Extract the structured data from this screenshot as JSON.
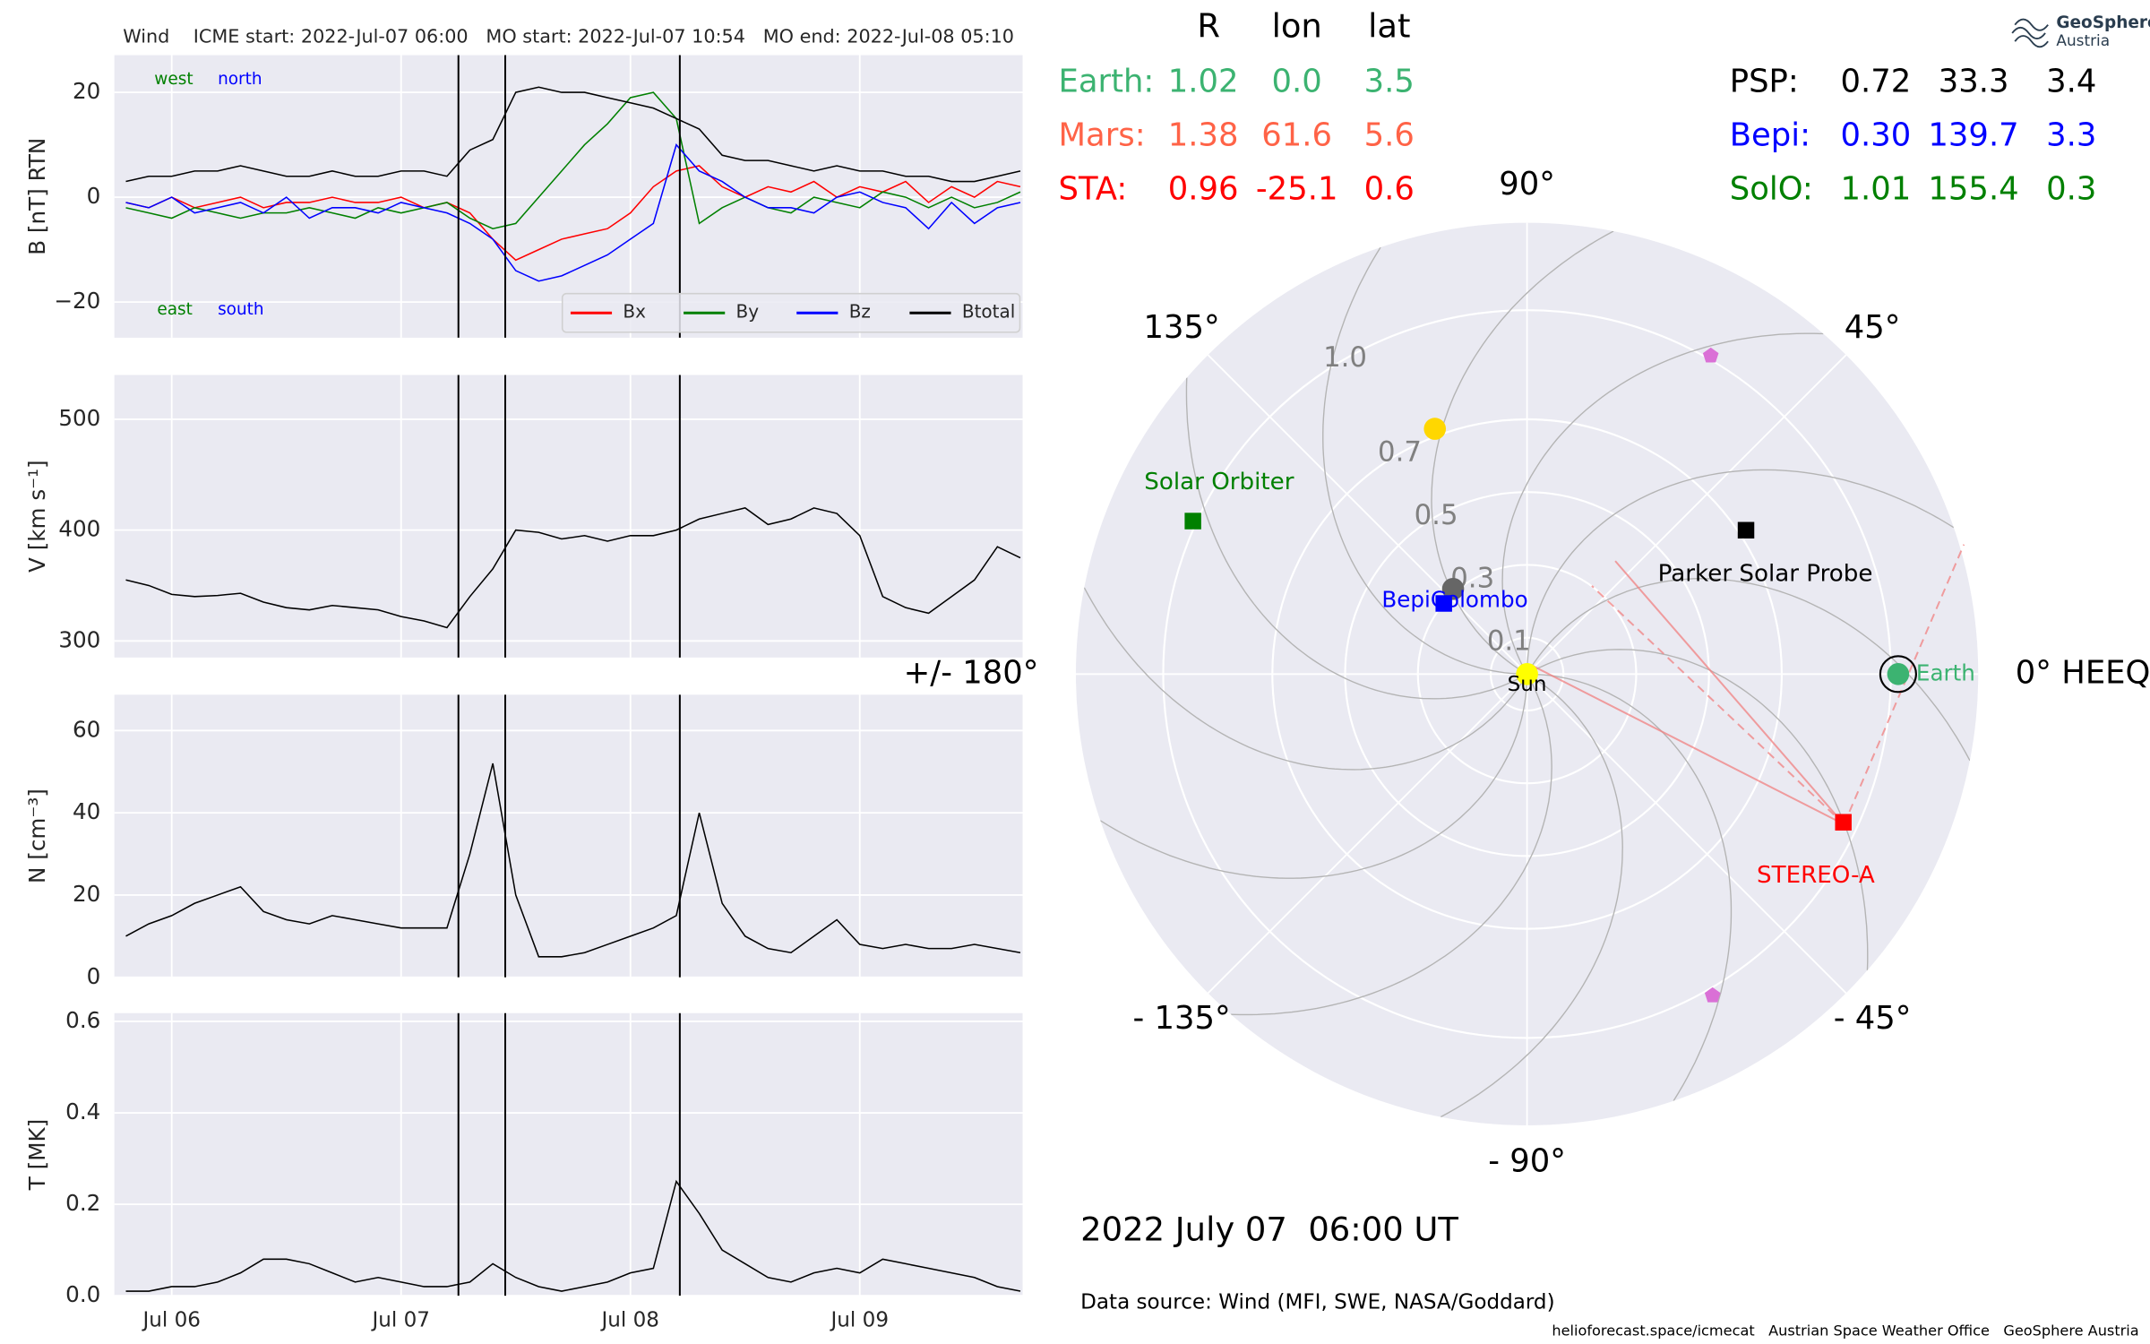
{
  "chart_data": [
    {
      "type": "line",
      "title": "Wind    ICME start: 2022-Jul-07 06:00   MO start: 2022-Jul-07 10:54   MO end: 2022-Jul-08 05:10",
      "ylabel": "B [nT] RTN",
      "x": [
        5.8,
        5.9,
        6,
        6.1,
        6.2,
        6.3,
        6.4,
        6.5,
        6.6,
        6.7,
        6.8,
        6.9,
        7,
        7.1,
        7.2,
        7.3,
        7.4,
        7.5,
        7.6,
        7.7,
        7.8,
        7.9,
        8,
        8.1,
        8.2,
        8.3,
        8.4,
        8.5,
        8.6,
        8.7,
        8.8,
        8.9,
        9,
        9.1,
        9.2,
        9.3,
        9.4,
        9.5,
        9.6,
        9.7
      ],
      "series": [
        {
          "name": "Bx",
          "color": "#ff0000",
          "values": [
            -1,
            -2,
            0,
            -2,
            -1,
            0,
            -2,
            -1,
            -1,
            0,
            -1,
            -1,
            0,
            -2,
            -1,
            -3,
            -8,
            -12,
            -10,
            -8,
            -7,
            -6,
            -3,
            2,
            5,
            6,
            2,
            0,
            2,
            1,
            3,
            0,
            2,
            1,
            3,
            -1,
            2,
            0,
            3,
            2
          ]
        },
        {
          "name": "By",
          "color": "#008000",
          "values": [
            -2,
            -3,
            -4,
            -2,
            -3,
            -4,
            -3,
            -3,
            -2,
            -3,
            -4,
            -2,
            -3,
            -2,
            -1,
            -4,
            -6,
            -5,
            0,
            5,
            10,
            14,
            19,
            20,
            15,
            -5,
            -2,
            0,
            -2,
            -3,
            0,
            -1,
            -2,
            1,
            0,
            -2,
            0,
            -2,
            -1,
            1
          ]
        },
        {
          "name": "Bz",
          "color": "#0000ff",
          "values": [
            -1,
            -2,
            0,
            -3,
            -2,
            -1,
            -3,
            0,
            -4,
            -2,
            -2,
            -3,
            -1,
            -2,
            -3,
            -5,
            -8,
            -14,
            -16,
            -15,
            -13,
            -11,
            -8,
            -5,
            10,
            5,
            3,
            0,
            -2,
            -2,
            -3,
            0,
            1,
            -1,
            -2,
            -6,
            -1,
            -5,
            -2,
            -1
          ]
        },
        {
          "name": "Btotal",
          "color": "#000000",
          "values": [
            3,
            4,
            4,
            5,
            5,
            6,
            5,
            4,
            4,
            5,
            4,
            4,
            5,
            5,
            4,
            9,
            11,
            20,
            21,
            20,
            20,
            19,
            18,
            17,
            15,
            13,
            8,
            7,
            7,
            6,
            5,
            6,
            5,
            5,
            4,
            4,
            3,
            3,
            4,
            5
          ]
        }
      ],
      "xlim": [
        5.75,
        9.71
      ],
      "xticks": [
        6,
        7,
        8,
        9
      ],
      "ylim": [
        -26.8,
        27.1
      ],
      "yticks": [
        {
          "value": -20,
          "label": "−20"
        },
        0,
        20
      ],
      "grid": true,
      "legend": "lower right",
      "vlines": [
        7.25,
        7.4542,
        8.2153
      ],
      "annotations": [
        {
          "text": "west",
          "color": "#008000"
        },
        {
          "text": "north",
          "color": "#0000ff"
        },
        {
          "text": "east",
          "color": "#008000"
        },
        {
          "text": "south",
          "color": "#0000ff"
        }
      ]
    },
    {
      "type": "line",
      "ylabel": "V [km s⁻¹]",
      "x": [
        5.8,
        5.9,
        6,
        6.1,
        6.2,
        6.3,
        6.4,
        6.5,
        6.6,
        6.7,
        6.8,
        6.9,
        7,
        7.1,
        7.2,
        7.3,
        7.4,
        7.5,
        7.6,
        7.7,
        7.8,
        7.9,
        8,
        8.1,
        8.2,
        8.3,
        8.4,
        8.5,
        8.6,
        8.7,
        8.8,
        8.9,
        9,
        9.1,
        9.2,
        9.3,
        9.4,
        9.5,
        9.6,
        9.7
      ],
      "series": [
        {
          "color": "#000000",
          "values": [
            355,
            350,
            342,
            340,
            341,
            343,
            335,
            330,
            328,
            332,
            330,
            328,
            322,
            318,
            312,
            340,
            365,
            400,
            398,
            392,
            395,
            390,
            395,
            395,
            400,
            410,
            415,
            420,
            405,
            410,
            420,
            415,
            395,
            340,
            330,
            325,
            340,
            355,
            385,
            375
          ]
        }
      ],
      "xlim": [
        5.75,
        9.71
      ],
      "xticks": [
        6,
        7,
        8,
        9
      ],
      "ylim": [
        285,
        540
      ],
      "yticks": [
        300,
        400,
        500
      ],
      "grid": true,
      "vlines": [
        7.25,
        7.4542,
        8.2153
      ]
    },
    {
      "type": "line",
      "ylabel": "N [cm⁻³]",
      "x": [
        5.8,
        5.9,
        6,
        6.1,
        6.2,
        6.3,
        6.4,
        6.5,
        6.6,
        6.7,
        6.8,
        6.9,
        7,
        7.1,
        7.2,
        7.3,
        7.4,
        7.5,
        7.6,
        7.7,
        7.8,
        7.9,
        8,
        8.1,
        8.2,
        8.3,
        8.4,
        8.5,
        8.6,
        8.7,
        8.8,
        8.9,
        9,
        9.1,
        9.2,
        9.3,
        9.4,
        9.5,
        9.6,
        9.7
      ],
      "series": [
        {
          "color": "#000000",
          "values": [
            10,
            13,
            15,
            18,
            20,
            22,
            16,
            14,
            13,
            15,
            14,
            13,
            12,
            12,
            12,
            30,
            52,
            20,
            5,
            5,
            6,
            8,
            10,
            12,
            15,
            40,
            18,
            10,
            7,
            6,
            10,
            14,
            8,
            7,
            8,
            7,
            7,
            8,
            7,
            6
          ]
        }
      ],
      "xlim": [
        5.75,
        9.71
      ],
      "xticks": [
        6,
        7,
        8,
        9
      ],
      "ylim": [
        0,
        68.7
      ],
      "yticks": [
        0,
        20,
        40,
        60
      ],
      "grid": true,
      "vlines": [
        7.25,
        7.4542,
        8.2153
      ]
    },
    {
      "type": "line",
      "ylabel": "T [MK]",
      "x": [
        5.8,
        5.9,
        6,
        6.1,
        6.2,
        6.3,
        6.4,
        6.5,
        6.6,
        6.7,
        6.8,
        6.9,
        7,
        7.1,
        7.2,
        7.3,
        7.4,
        7.5,
        7.6,
        7.7,
        7.8,
        7.9,
        8,
        8.1,
        8.2,
        8.3,
        8.4,
        8.5,
        8.6,
        8.7,
        8.8,
        8.9,
        9,
        9.1,
        9.2,
        9.3,
        9.4,
        9.5,
        9.6,
        9.7
      ],
      "series": [
        {
          "color": "#000000",
          "values": [
            0.01,
            0.01,
            0.02,
            0.02,
            0.03,
            0.05,
            0.08,
            0.08,
            0.07,
            0.05,
            0.03,
            0.04,
            0.03,
            0.02,
            0.02,
            0.03,
            0.07,
            0.04,
            0.02,
            0.01,
            0.02,
            0.03,
            0.05,
            0.06,
            0.25,
            0.18,
            0.1,
            0.07,
            0.04,
            0.03,
            0.05,
            0.06,
            0.05,
            0.08,
            0.07,
            0.06,
            0.05,
            0.04,
            0.02,
            0.01
          ]
        }
      ],
      "xlim": [
        5.75,
        9.71
      ],
      "xticks": [
        {
          "value": 6,
          "label": "Jul 06"
        },
        {
          "value": 7,
          "label": "Jul 07"
        },
        {
          "value": 8,
          "label": "Jul 08"
        },
        {
          "value": 9,
          "label": "Jul 09"
        }
      ],
      "ylim": [
        0,
        0.618
      ],
      "yticks": [
        {
          "value": 0,
          "label": "0.0"
        },
        0.2,
        0.4,
        0.6
      ],
      "grid": true,
      "vlines": [
        7.25,
        7.4542,
        8.2153
      ]
    },
    {
      "type": "polar",
      "rlim": [
        0,
        1.24
      ],
      "rticks": [
        0.1,
        0.3,
        0.5,
        0.7,
        {
          "value": 1,
          "label": "1.0"
        }
      ],
      "thetaticks": [
        {
          "value": 0,
          "label": "0° HEEQ"
        },
        {
          "value": 45,
          "label": "45°"
        },
        {
          "value": 90,
          "label": "90°"
        },
        {
          "value": 135,
          "label": "135°"
        },
        {
          "value": 180,
          "label": "+/- 180°"
        },
        {
          "value": -135,
          "label": "- 135°"
        },
        {
          "value": -90,
          "label": "- 90°"
        },
        {
          "value": -45,
          "label": "- 45°"
        }
      ],
      "points": [
        {
          "color": "#ffd700",
          "marker": "circle",
          "r": 0.72,
          "lon": 110.6
        },
        {
          "color": "#666666",
          "marker": "circle",
          "r": 0.31,
          "lon": 131
        },
        {
          "color": "#da70d6",
          "marker": "pentagon",
          "r": 1.01,
          "lon": 60
        },
        {
          "color": "#da70d6",
          "marker": "pentagon",
          "r": 1.02,
          "lon": -60
        },
        {
          "name": "Sun",
          "color": "#ffff00",
          "marker": "circle",
          "r": 0,
          "lon": 0
        },
        {
          "name": "Earth",
          "color": "#3cb371",
          "marker": "circle",
          "edgecolor": "#000000",
          "r": 1.02,
          "lon": 0.0
        },
        {
          "name": "STEREO-A",
          "color": "#ff0000",
          "marker": "square",
          "r": 0.96,
          "lon": -25.1
        },
        {
          "name": "Parker Solar Probe",
          "color": "#000000",
          "marker": "square",
          "r": 0.72,
          "lon": 33.3
        },
        {
          "name": "BepiColombo",
          "color": "#0000ff",
          "marker": "square",
          "r": 0.3,
          "lon": 139.7
        },
        {
          "name": "Solar Orbiter",
          "color": "#008000",
          "marker": "square",
          "r": 1.01,
          "lon": 155.4
        }
      ]
    }
  ],
  "positions": {
    "header": [
      "R",
      "lon",
      "lat"
    ],
    "rows": [
      {
        "label": "Earth:",
        "color": "#3cb371",
        "values": [
          "1.02",
          "0.0",
          "3.5"
        ]
      },
      {
        "label": "Mars:",
        "color": "#ff6347",
        "values": [
          "1.38",
          "61.6",
          "5.6"
        ]
      },
      {
        "label": "STA:",
        "color": "#ff0000",
        "values": [
          "0.96",
          "-25.1",
          "0.6"
        ]
      },
      {
        "label": "PSP:",
        "color": "#000000",
        "values": [
          "0.72",
          "33.3",
          "3.4"
        ]
      },
      {
        "label": "Bepi:",
        "color": "#0000ff",
        "values": [
          "0.30",
          "139.7",
          "3.3"
        ]
      },
      {
        "label": "SolO:",
        "color": "#008000",
        "values": [
          "1.01",
          "155.4",
          "0.3"
        ]
      }
    ]
  },
  "date": "2022 July 07  06:00 UT",
  "data_source": "Data source: Wind (MFI, SWE, NASA/Goddard)",
  "footer": "helioforecast.space/icmecat   Austrian Space Weather Office   GeoSphere Austria",
  "logo": [
    "GeoSphere",
    "Austria"
  ]
}
